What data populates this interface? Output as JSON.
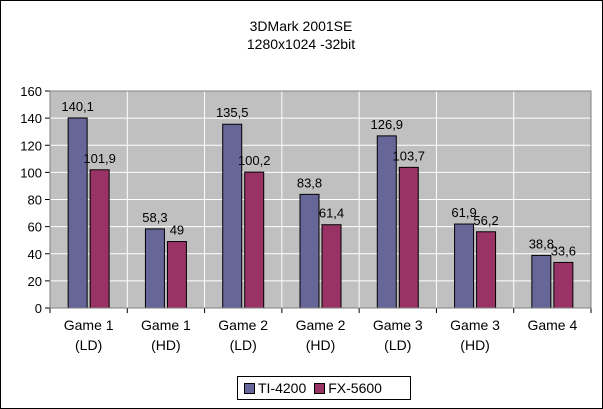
{
  "chart_data": {
    "type": "bar",
    "title": "3DMark 2001SE",
    "subtitle": "1280x1024 -32bit",
    "categories": [
      [
        "Game 1",
        "(LD)"
      ],
      [
        "Game 1",
        "(HD)"
      ],
      [
        "Game 2",
        "(LD)"
      ],
      [
        "Game 2",
        "(HD)"
      ],
      [
        "Game 3",
        "(LD)"
      ],
      [
        "Game 3",
        "(HD)"
      ],
      [
        "Game 4"
      ]
    ],
    "series": [
      {
        "name": "TI-4200",
        "color": "#666699",
        "values": [
          140.1,
          58.3,
          135.5,
          83.8,
          126.9,
          61.9,
          38.8
        ],
        "labels": [
          "140,1",
          "58,3",
          "135,5",
          "83,8",
          "126,9",
          "61,9",
          "38,8"
        ]
      },
      {
        "name": "FX-5600",
        "color": "#993366",
        "values": [
          101.9,
          49,
          100.2,
          61.4,
          103.7,
          56.2,
          33.6
        ],
        "labels": [
          "101,9",
          "49",
          "100,2",
          "61,4",
          "103,7",
          "56,2",
          "33,6"
        ]
      }
    ],
    "ylim": [
      0,
      160
    ],
    "yticks": [
      0,
      20,
      40,
      60,
      80,
      100,
      120,
      140,
      160
    ],
    "xlabel": "",
    "ylabel": "",
    "grid": true,
    "legend": "bottom",
    "plot_background": "#c0c0c0",
    "grid_color": "#ffffff"
  }
}
